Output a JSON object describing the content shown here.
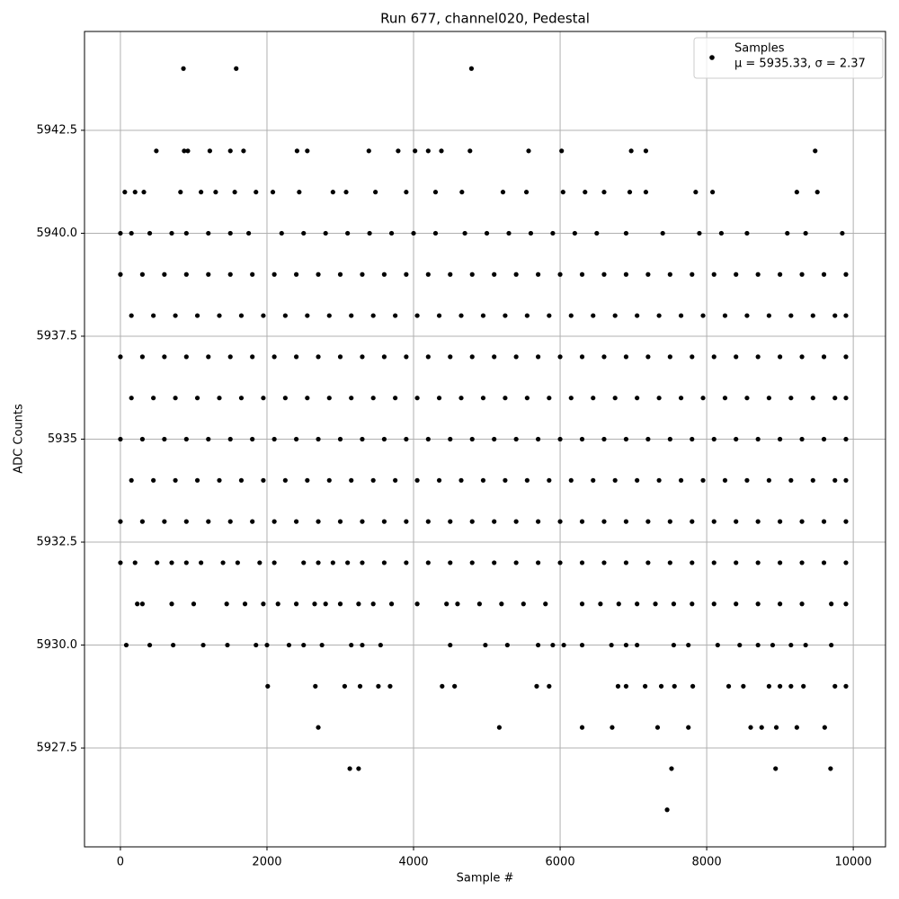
{
  "chart_data": {
    "type": "scatter",
    "title": "Run 677, channel020, Pedestal",
    "x_label": "Sample #",
    "y_label": "ADC Counts",
    "xlim": [
      -490,
      10440
    ],
    "ylim": [
      5925.1,
      5944.9
    ],
    "xticks": [
      0,
      2000,
      4000,
      6000,
      8000,
      10000
    ],
    "yticks": [
      5927.5,
      {
        "value": 5930,
        "label": "5930.0"
      },
      5932.5,
      5935,
      5937.5,
      {
        "value": 5940,
        "label": "5940.0"
      },
      5942.5
    ],
    "grid": true,
    "legend": "upper right",
    "stats_label": "μ = 5935.33, σ = 2.37",
    "series": [
      {
        "name": "Samples",
        "color": "#000000",
        "x": [
          860,
          1580,
          4790,
          490,
          870,
          920,
          1220,
          1500,
          1680,
          2410,
          2550,
          3390,
          3790,
          4020,
          4200,
          4380,
          4770,
          5570,
          6020,
          6970,
          7170,
          9480,
          60,
          200,
          320,
          820,
          1100,
          1300,
          1560,
          1850,
          2080,
          2440,
          2900,
          3080,
          3480,
          3900,
          4300,
          4660,
          5220,
          5540,
          6040,
          6340,
          6600,
          6950,
          7170,
          7850,
          8080,
          9230,
          9510,
          0,
          150,
          400,
          700,
          900,
          1200,
          1500,
          1750,
          2200,
          2500,
          2800,
          3100,
          3400,
          3700,
          4000,
          4300,
          4700,
          5000,
          5300,
          5600,
          5900,
          6200,
          6500,
          6900,
          7400,
          7900,
          8200,
          8550,
          9100,
          9350,
          9850,
          0,
          300,
          600,
          900,
          1200,
          1500,
          1800,
          2100,
          2400,
          2700,
          3000,
          3300,
          3600,
          3900,
          4200,
          4500,
          4800,
          5100,
          5400,
          5700,
          6000,
          6300,
          6600,
          6900,
          7200,
          7500,
          7800,
          8100,
          8400,
          8700,
          9000,
          9300,
          9600,
          9900,
          150,
          450,
          750,
          1050,
          1350,
          1650,
          1950,
          2250,
          2550,
          2850,
          3150,
          3450,
          3750,
          4050,
          4350,
          4650,
          4950,
          5250,
          5550,
          5850,
          6150,
          6450,
          6750,
          7050,
          7350,
          7650,
          7950,
          8250,
          8550,
          8850,
          9150,
          9450,
          9750,
          9900,
          0,
          300,
          600,
          900,
          1200,
          1500,
          1800,
          2100,
          2400,
          2700,
          3000,
          3300,
          3600,
          3900,
          4200,
          4500,
          4800,
          5100,
          5400,
          5700,
          6000,
          6300,
          6600,
          6900,
          7200,
          7500,
          7800,
          8100,
          8400,
          8700,
          9000,
          9300,
          9600,
          9900,
          150,
          450,
          750,
          1050,
          1350,
          1650,
          1950,
          2250,
          2550,
          2850,
          3150,
          3450,
          3750,
          4050,
          4350,
          4650,
          4950,
          5250,
          5550,
          5850,
          6150,
          6450,
          6750,
          7050,
          7350,
          7650,
          7950,
          8250,
          8550,
          8850,
          9150,
          9450,
          9750,
          9900,
          0,
          300,
          600,
          900,
          1200,
          1500,
          1800,
          2100,
          2400,
          2700,
          3000,
          3300,
          3600,
          3900,
          4200,
          4500,
          4800,
          5100,
          5400,
          5700,
          6000,
          6300,
          6600,
          6900,
          7200,
          7500,
          7800,
          8100,
          8400,
          8700,
          9000,
          9300,
          9600,
          9900,
          150,
          450,
          750,
          1050,
          1350,
          1650,
          1950,
          2250,
          2550,
          2850,
          3150,
          3450,
          3750,
          4050,
          4350,
          4650,
          4950,
          5250,
          5550,
          5850,
          6150,
          6450,
          6750,
          7050,
          7350,
          7650,
          7950,
          8250,
          8550,
          8850,
          9150,
          9450,
          9750,
          9900,
          0,
          300,
          600,
          900,
          1200,
          1500,
          1800,
          2100,
          2400,
          2700,
          3000,
          3300,
          3600,
          3900,
          4200,
          4500,
          4800,
          5100,
          5400,
          5700,
          6000,
          6300,
          6600,
          6900,
          7200,
          7500,
          7800,
          8100,
          8400,
          8700,
          9000,
          9300,
          9600,
          9900,
          0,
          200,
          500,
          700,
          900,
          1100,
          1400,
          1600,
          1900,
          2100,
          2500,
          2700,
          2900,
          3100,
          3300,
          3600,
          3900,
          4200,
          4500,
          4800,
          5100,
          5400,
          5700,
          6000,
          6300,
          6600,
          6900,
          7200,
          7500,
          7800,
          8100,
          8400,
          8700,
          9000,
          9300,
          9600,
          9900,
          230,
          300,
          700,
          1000,
          1450,
          1700,
          1950,
          2150,
          2400,
          2650,
          2800,
          3000,
          3250,
          3450,
          3700,
          4050,
          4450,
          4600,
          4900,
          5200,
          5500,
          5800,
          6300,
          6550,
          6800,
          7050,
          7300,
          7550,
          7800,
          8100,
          8400,
          8700,
          9000,
          9300,
          9700,
          9900,
          80,
          400,
          720,
          1130,
          1460,
          1850,
          2000,
          2300,
          2500,
          2750,
          3150,
          3300,
          3550,
          4500,
          4980,
          5280,
          5700,
          5900,
          6050,
          6300,
          6700,
          6900,
          7050,
          7550,
          7750,
          8150,
          8450,
          8700,
          8900,
          9150,
          9350,
          9700,
          2010,
          2660,
          3060,
          3270,
          3520,
          3680,
          4390,
          4560,
          5680,
          5850,
          6790,
          6900,
          7160,
          7380,
          7560,
          7810,
          8300,
          8500,
          8850,
          9000,
          9150,
          9320,
          9750,
          9900,
          2700,
          5170,
          6300,
          6710,
          7330,
          7750,
          8600,
          8750,
          8950,
          9230,
          9610,
          3130,
          3250,
          7520,
          8940,
          9690,
          7460
        ],
        "values": [
          5944,
          5944,
          5944,
          5942,
          5942,
          5942,
          5942,
          5942,
          5942,
          5942,
          5942,
          5942,
          5942,
          5942,
          5942,
          5942,
          5942,
          5942,
          5942,
          5942,
          5942,
          5942,
          5941,
          5941,
          5941,
          5941,
          5941,
          5941,
          5941,
          5941,
          5941,
          5941,
          5941,
          5941,
          5941,
          5941,
          5941,
          5941,
          5941,
          5941,
          5941,
          5941,
          5941,
          5941,
          5941,
          5941,
          5941,
          5941,
          5941,
          5940,
          5940,
          5940,
          5940,
          5940,
          5940,
          5940,
          5940,
          5940,
          5940,
          5940,
          5940,
          5940,
          5940,
          5940,
          5940,
          5940,
          5940,
          5940,
          5940,
          5940,
          5940,
          5940,
          5940,
          5940,
          5940,
          5940,
          5940,
          5940,
          5940,
          5940,
          5939,
          5939,
          5939,
          5939,
          5939,
          5939,
          5939,
          5939,
          5939,
          5939,
          5939,
          5939,
          5939,
          5939,
          5939,
          5939,
          5939,
          5939,
          5939,
          5939,
          5939,
          5939,
          5939,
          5939,
          5939,
          5939,
          5939,
          5939,
          5939,
          5939,
          5939,
          5939,
          5939,
          5939,
          5938,
          5938,
          5938,
          5938,
          5938,
          5938,
          5938,
          5938,
          5938,
          5938,
          5938,
          5938,
          5938,
          5938,
          5938,
          5938,
          5938,
          5938,
          5938,
          5938,
          5938,
          5938,
          5938,
          5938,
          5938,
          5938,
          5938,
          5938,
          5938,
          5938,
          5938,
          5938,
          5938,
          5938,
          5937,
          5937,
          5937,
          5937,
          5937,
          5937,
          5937,
          5937,
          5937,
          5937,
          5937,
          5937,
          5937,
          5937,
          5937,
          5937,
          5937,
          5937,
          5937,
          5937,
          5937,
          5937,
          5937,
          5937,
          5937,
          5937,
          5937,
          5937,
          5937,
          5937,
          5937,
          5937,
          5937,
          5937,
          5936,
          5936,
          5936,
          5936,
          5936,
          5936,
          5936,
          5936,
          5936,
          5936,
          5936,
          5936,
          5936,
          5936,
          5936,
          5936,
          5936,
          5936,
          5936,
          5936,
          5936,
          5936,
          5936,
          5936,
          5936,
          5936,
          5936,
          5936,
          5936,
          5936,
          5936,
          5936,
          5936,
          5936,
          5935,
          5935,
          5935,
          5935,
          5935,
          5935,
          5935,
          5935,
          5935,
          5935,
          5935,
          5935,
          5935,
          5935,
          5935,
          5935,
          5935,
          5935,
          5935,
          5935,
          5935,
          5935,
          5935,
          5935,
          5935,
          5935,
          5935,
          5935,
          5935,
          5935,
          5935,
          5935,
          5935,
          5935,
          5934,
          5934,
          5934,
          5934,
          5934,
          5934,
          5934,
          5934,
          5934,
          5934,
          5934,
          5934,
          5934,
          5934,
          5934,
          5934,
          5934,
          5934,
          5934,
          5934,
          5934,
          5934,
          5934,
          5934,
          5934,
          5934,
          5934,
          5934,
          5934,
          5934,
          5934,
          5934,
          5934,
          5934,
          5933,
          5933,
          5933,
          5933,
          5933,
          5933,
          5933,
          5933,
          5933,
          5933,
          5933,
          5933,
          5933,
          5933,
          5933,
          5933,
          5933,
          5933,
          5933,
          5933,
          5933,
          5933,
          5933,
          5933,
          5933,
          5933,
          5933,
          5933,
          5933,
          5933,
          5933,
          5933,
          5933,
          5933,
          5932,
          5932,
          5932,
          5932,
          5932,
          5932,
          5932,
          5932,
          5932,
          5932,
          5932,
          5932,
          5932,
          5932,
          5932,
          5932,
          5932,
          5932,
          5932,
          5932,
          5932,
          5932,
          5932,
          5932,
          5932,
          5932,
          5932,
          5932,
          5932,
          5932,
          5932,
          5932,
          5932,
          5932,
          5932,
          5932,
          5932,
          5931,
          5931,
          5931,
          5931,
          5931,
          5931,
          5931,
          5931,
          5931,
          5931,
          5931,
          5931,
          5931,
          5931,
          5931,
          5931,
          5931,
          5931,
          5931,
          5931,
          5931,
          5931,
          5931,
          5931,
          5931,
          5931,
          5931,
          5931,
          5931,
          5931,
          5931,
          5931,
          5931,
          5931,
          5931,
          5931,
          5930,
          5930,
          5930,
          5930,
          5930,
          5930,
          5930,
          5930,
          5930,
          5930,
          5930,
          5930,
          5930,
          5930,
          5930,
          5930,
          5930,
          5930,
          5930,
          5930,
          5930,
          5930,
          5930,
          5930,
          5930,
          5930,
          5930,
          5930,
          5930,
          5930,
          5930,
          5930,
          5929,
          5929,
          5929,
          5929,
          5929,
          5929,
          5929,
          5929,
          5929,
          5929,
          5929,
          5929,
          5929,
          5929,
          5929,
          5929,
          5929,
          5929,
          5929,
          5929,
          5929,
          5929,
          5929,
          5929,
          5928,
          5928,
          5928,
          5928,
          5928,
          5928,
          5928,
          5928,
          5928,
          5928,
          5928,
          5927,
          5927,
          5927,
          5927,
          5927,
          5926
        ]
      }
    ]
  }
}
